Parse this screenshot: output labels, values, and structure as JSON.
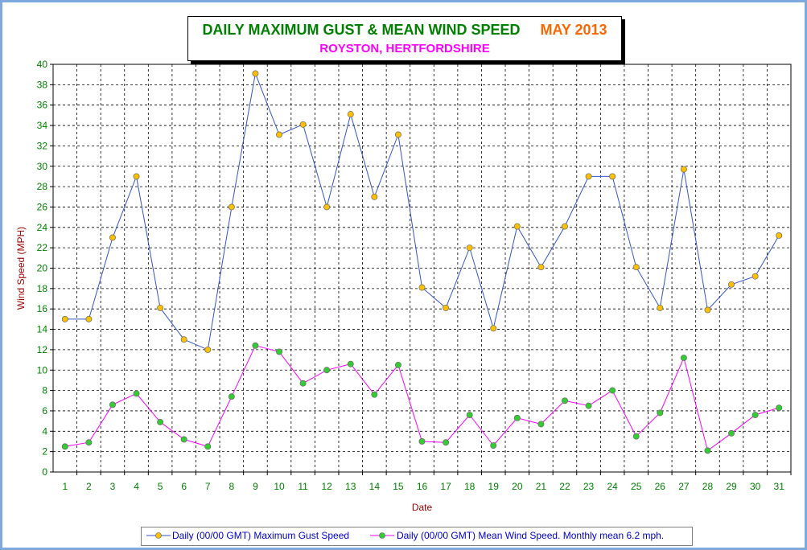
{
  "header": {
    "title": "DAILY MAXIMUM GUST & MEAN WIND SPEED",
    "month": "MAY 2013",
    "subtitle": "ROYSTON, HERTFORDSHIRE"
  },
  "colors": {
    "frame": "#7fa8dc",
    "gust_line": "#3355cc",
    "gust_marker": "#ffc000",
    "mean_line": "#ff00ff",
    "mean_marker": "#33cc33",
    "axis_text": "#008000",
    "axis_label": "#990000"
  },
  "legend": {
    "gust_label": "Daily (00/00 GMT) Maximum Gust Speed",
    "mean_label": "Daily (00/00 GMT) Mean Wind Speed. Monthly mean 6.2 mph."
  },
  "chart_data": {
    "type": "line",
    "xlabel": "Date",
    "ylabel": "Wind Speed (MPH)",
    "ylim": [
      0,
      40
    ],
    "y_ticks": [
      0,
      2,
      4,
      6,
      8,
      10,
      12,
      14,
      16,
      18,
      20,
      22,
      24,
      26,
      28,
      30,
      32,
      34,
      36,
      38,
      40
    ],
    "grid": true,
    "legend_position": "bottom",
    "x": [
      1,
      2,
      3,
      4,
      5,
      6,
      7,
      8,
      9,
      10,
      11,
      12,
      13,
      14,
      15,
      16,
      17,
      18,
      19,
      20,
      21,
      22,
      23,
      24,
      25,
      26,
      27,
      28,
      29,
      30,
      31
    ],
    "series": [
      {
        "name": "Daily (00/00 GMT) Maximum Gust Speed",
        "values": [
          15,
          15,
          23,
          29,
          16.1,
          13,
          12,
          26,
          39.1,
          33.1,
          34.1,
          26,
          35.1,
          27,
          33.1,
          18.1,
          16.1,
          22,
          14.1,
          24.1,
          20.1,
          24.1,
          29,
          29,
          20.1,
          16.1,
          29.7,
          15.9,
          18.4,
          19.2,
          23.2
        ]
      },
      {
        "name": "Daily (00/00 GMT) Mean Wind Speed. Monthly mean 6.2 mph.",
        "values": [
          2.5,
          2.9,
          6.6,
          7.7,
          4.9,
          3.2,
          2.5,
          7.4,
          12.4,
          11.8,
          8.7,
          10.0,
          10.6,
          7.6,
          10.5,
          3.0,
          2.9,
          5.6,
          2.6,
          5.3,
          4.7,
          7.0,
          6.5,
          8.0,
          3.5,
          5.8,
          11.2,
          2.1,
          3.8,
          5.6,
          6.3
        ]
      }
    ]
  }
}
